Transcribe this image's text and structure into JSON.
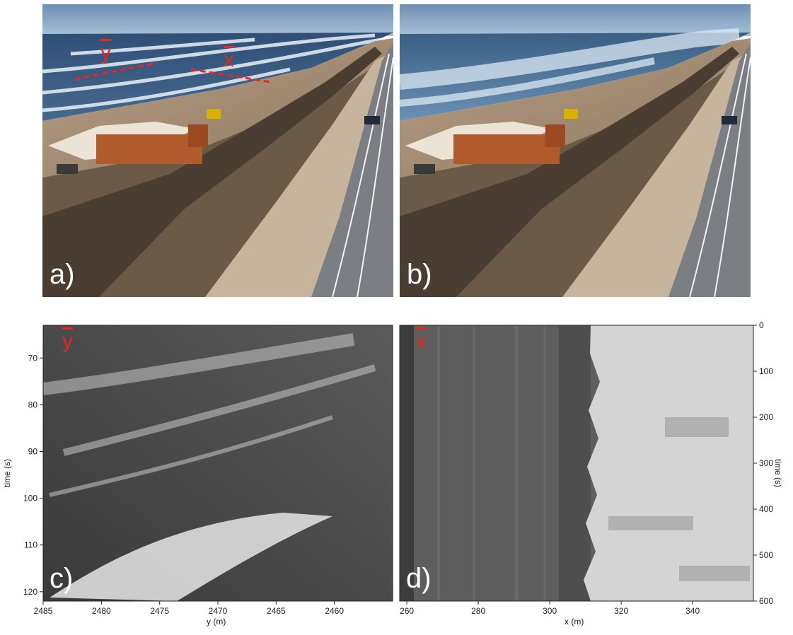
{
  "panels": {
    "a": {
      "letter": "a)",
      "marks": [
        "y",
        "x"
      ]
    },
    "b": {
      "letter": "b)"
    },
    "c": {
      "letter": "c)",
      "mark": "y"
    },
    "d": {
      "letter": "d)",
      "mark": "x"
    }
  },
  "chart_data": [
    {
      "panel": "c",
      "type": "heatmap",
      "title": "",
      "xlabel": "y (m)",
      "ylabel": "time (s)",
      "xlim": [
        2485,
        2455
      ],
      "ylim": [
        122,
        63
      ],
      "x_ticks": [
        2485,
        2480,
        2475,
        2470,
        2465,
        2460
      ],
      "y_ticks": [
        70,
        80,
        90,
        100,
        110,
        120
      ],
      "grid": false,
      "colormap": "grayscale"
    },
    {
      "panel": "d",
      "type": "heatmap",
      "title": "",
      "xlabel": "x (m)",
      "ylabel": "time (s)",
      "xlim": [
        258,
        357
      ],
      "ylim": [
        600,
        0
      ],
      "x_ticks": [
        260,
        280,
        300,
        320,
        340
      ],
      "y_ticks": [
        0,
        100,
        200,
        300,
        400,
        500,
        600
      ],
      "y_axis_side": "right",
      "grid": false,
      "colormap": "grayscale"
    }
  ]
}
